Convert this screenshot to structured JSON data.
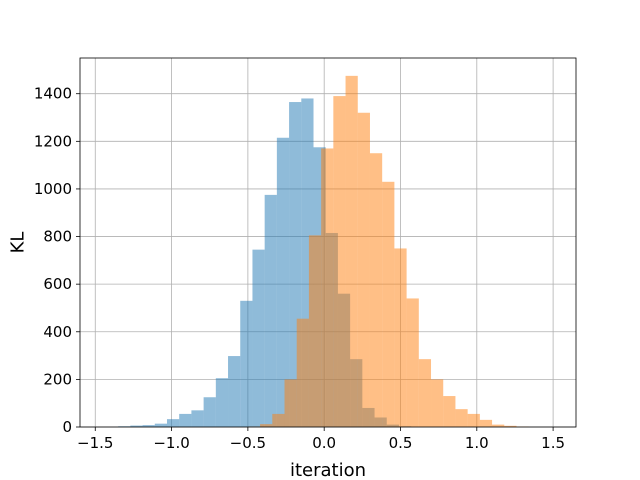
{
  "chart_data": {
    "type": "bar",
    "title": "",
    "xlabel": "iteration",
    "ylabel": "KL",
    "xlim": [
      -1.6,
      1.65
    ],
    "ylim": [
      0,
      1550
    ],
    "xticks": [
      -1.5,
      -1.0,
      -0.5,
      0.0,
      0.5,
      1.0,
      1.5
    ],
    "xtick_labels": [
      "−1.5",
      "−1.0",
      "−0.5",
      "0.0",
      "0.5",
      "1.0",
      "1.5"
    ],
    "yticks": [
      0,
      200,
      400,
      600,
      800,
      1000,
      1200,
      1400
    ],
    "ytick_labels": [
      "0",
      "200",
      "400",
      "600",
      "800",
      "1000",
      "1200",
      "1400"
    ],
    "grid": true,
    "legend": "none",
    "alpha": 0.5,
    "series": [
      {
        "color": "#1f77b4",
        "bins": [
          [
            -1.35,
            -1.27,
            3
          ],
          [
            -1.27,
            -1.19,
            6
          ],
          [
            -1.19,
            -1.11,
            8
          ],
          [
            -1.11,
            -1.03,
            14
          ],
          [
            -1.03,
            -0.95,
            33
          ],
          [
            -0.95,
            -0.87,
            55
          ],
          [
            -0.87,
            -0.79,
            70
          ],
          [
            -0.79,
            -0.71,
            125
          ],
          [
            -0.71,
            -0.63,
            205
          ],
          [
            -0.63,
            -0.55,
            298
          ],
          [
            -0.55,
            -0.47,
            530
          ],
          [
            -0.47,
            -0.39,
            745
          ],
          [
            -0.39,
            -0.31,
            975
          ],
          [
            -0.31,
            -0.23,
            1215
          ],
          [
            -0.23,
            -0.15,
            1365
          ],
          [
            -0.15,
            -0.07,
            1380
          ],
          [
            -0.07,
            0.01,
            1175
          ],
          [
            0.01,
            0.09,
            815
          ],
          [
            0.09,
            0.17,
            560
          ],
          [
            0.17,
            0.25,
            285
          ],
          [
            0.25,
            0.33,
            80
          ],
          [
            0.33,
            0.41,
            40
          ],
          [
            0.41,
            0.49,
            10
          ],
          [
            0.49,
            0.57,
            3
          ]
        ]
      },
      {
        "color": "#ff7f0e",
        "bins": [
          [
            -0.5,
            -0.42,
            2
          ],
          [
            -0.42,
            -0.34,
            12
          ],
          [
            -0.34,
            -0.26,
            55
          ],
          [
            -0.26,
            -0.18,
            200
          ],
          [
            -0.18,
            -0.1,
            455
          ],
          [
            -0.1,
            -0.02,
            805
          ],
          [
            -0.02,
            0.06,
            1170
          ],
          [
            0.06,
            0.14,
            1390
          ],
          [
            0.14,
            0.22,
            1475
          ],
          [
            0.22,
            0.3,
            1320
          ],
          [
            0.3,
            0.38,
            1150
          ],
          [
            0.38,
            0.46,
            1030
          ],
          [
            0.46,
            0.54,
            750
          ],
          [
            0.54,
            0.62,
            540
          ],
          [
            0.62,
            0.7,
            285
          ],
          [
            0.7,
            0.78,
            200
          ],
          [
            0.78,
            0.86,
            130
          ],
          [
            0.86,
            0.94,
            75
          ],
          [
            0.94,
            1.02,
            55
          ],
          [
            1.02,
            1.1,
            30
          ],
          [
            1.1,
            1.18,
            10
          ],
          [
            1.18,
            1.26,
            5
          ],
          [
            1.26,
            1.34,
            2
          ]
        ]
      }
    ]
  }
}
